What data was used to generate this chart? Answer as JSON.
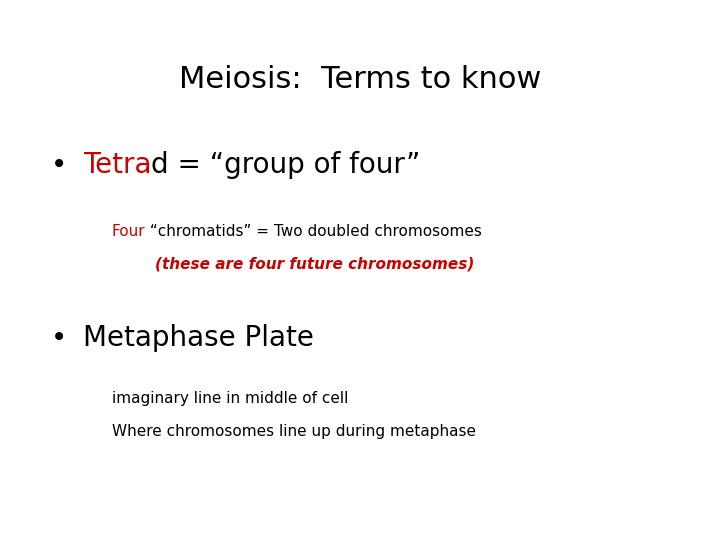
{
  "title": "Meiosis:  Terms to know",
  "title_fontsize": 22,
  "title_color": "#000000",
  "background_color": "#ffffff",
  "bullet1_red": "Tetra",
  "bullet1_black": "d = “group of four”",
  "bullet1_fontsize": 20,
  "sub1a_red": "Four",
  "sub1a_black": " “chromatids” = Two doubled chromosomes",
  "sub1a_fontsize": 11,
  "sub1b_text": "(these are four future chromosomes)",
  "sub1b_fontsize": 11,
  "sub1b_color": "#cc0000",
  "bullet2_text": "Metaphase Plate",
  "bullet2_fontsize": 20,
  "bullet2_color": "#000000",
  "sub2a_text": "imaginary line in middle of cell",
  "sub2a_fontsize": 11,
  "sub2a_color": "#000000",
  "sub2b_text": "Where chromosomes line up during metaphase",
  "sub2b_fontsize": 11,
  "sub2b_color": "#000000",
  "red_color": "#cc0000",
  "black_color": "#000000",
  "bullet_color": "#000000"
}
